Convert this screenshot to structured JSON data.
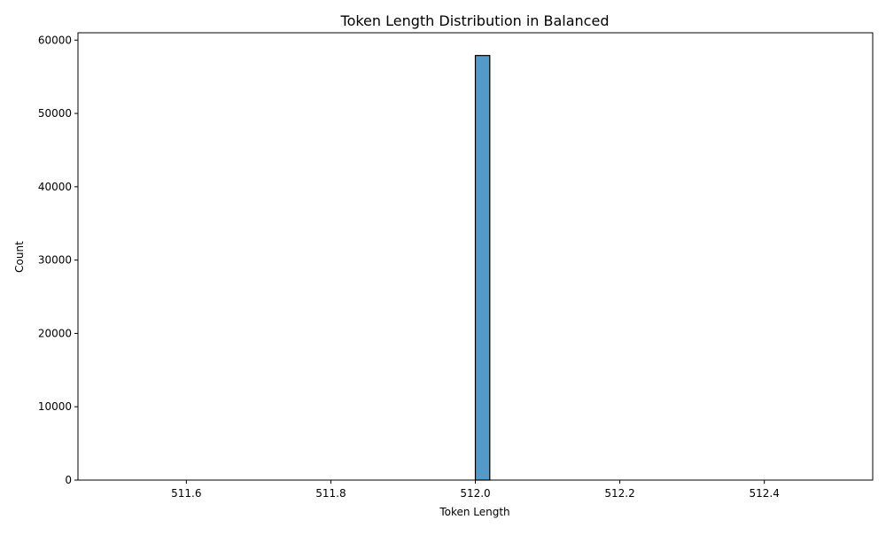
{
  "chart_data": {
    "type": "bar",
    "title": "Token Length Distribution in Balanced",
    "xlabel": "Token Length",
    "ylabel": "Count",
    "xlim": [
      511.45,
      512.55
    ],
    "ylim": [
      0,
      61000
    ],
    "xticks": [
      {
        "value": 511.6,
        "label": "511.6"
      },
      {
        "value": 511.8,
        "label": "511.8"
      },
      {
        "value": 512.0,
        "label": "512.0"
      },
      {
        "value": 512.2,
        "label": "512.2"
      },
      {
        "value": 512.4,
        "label": "512.4"
      }
    ],
    "yticks": [
      {
        "value": 0,
        "label": "0"
      },
      {
        "value": 10000,
        "label": "10000"
      },
      {
        "value": 20000,
        "label": "20000"
      },
      {
        "value": 30000,
        "label": "30000"
      },
      {
        "value": 40000,
        "label": "40000"
      },
      {
        "value": 50000,
        "label": "50000"
      },
      {
        "value": 60000,
        "label": "60000"
      }
    ],
    "bins": {
      "start": 511.5,
      "end": 512.5,
      "count": 50,
      "values": [
        0,
        0,
        0,
        0,
        0,
        0,
        0,
        0,
        0,
        0,
        0,
        0,
        0,
        0,
        0,
        0,
        0,
        0,
        0,
        0,
        0,
        0,
        0,
        0,
        0,
        57900,
        0,
        0,
        0,
        0,
        0,
        0,
        0,
        0,
        0,
        0,
        0,
        0,
        0,
        0,
        0,
        0,
        0,
        0,
        0,
        0,
        0,
        0,
        0,
        0
      ]
    },
    "grid": false,
    "legend": "none",
    "colors": {
      "bar_fill": "#5499c7",
      "bar_edge": "#000000",
      "axis": "#000000"
    }
  }
}
